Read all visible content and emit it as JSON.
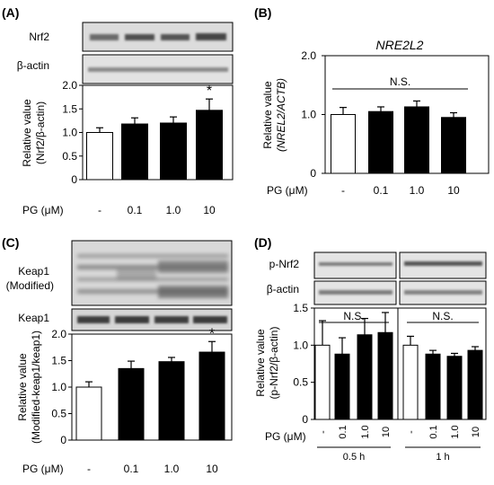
{
  "panels": {
    "A": {
      "letter": "(A)",
      "blot1": "Nrf2",
      "blot2": "β-actin"
    },
    "B": {
      "letter": "(B)",
      "gene_title": "NRE2L2"
    },
    "C": {
      "letter": "(C)",
      "blot1_line1": "Keap1",
      "blot1_line2": "(Modified)",
      "blot2": "Keap1"
    },
    "D": {
      "letter": "(D)",
      "blot1": "p-Nrf2",
      "blot2": "β-actin"
    }
  },
  "colors": {
    "control": "#ffffff",
    "treated": "#000000",
    "blot_bg": "#e4e4e4",
    "band": "#555555"
  },
  "chart_data": [
    {
      "id": "A",
      "type": "bar",
      "categories": [
        "-",
        "0.1",
        "1.0",
        "10"
      ],
      "values": [
        1.0,
        1.18,
        1.2,
        1.47
      ],
      "errors": [
        0.1,
        0.13,
        0.13,
        0.24
      ],
      "significance": [
        "",
        "",
        "",
        "*"
      ],
      "ylim": [
        0,
        2.0
      ],
      "yticks": [
        "0",
        "0.5",
        "1.0",
        "1.5",
        "2.0"
      ],
      "ylabel": [
        "Relative value",
        "(Nrf2/β-actin)"
      ],
      "xlabel": "PG (μM)"
    },
    {
      "id": "B",
      "type": "bar",
      "title": "NRE2L2",
      "categories": [
        "-",
        "0.1",
        "1.0",
        "10"
      ],
      "values": [
        1.0,
        1.05,
        1.13,
        0.95
      ],
      "errors": [
        0.12,
        0.08,
        0.1,
        0.08
      ],
      "annotation": "N.S.",
      "ylim": [
        0,
        2.0
      ],
      "yticks": [
        "0",
        "1.0",
        "2.0"
      ],
      "ylabel": [
        "Relative value",
        "(NREL2/ACTB)"
      ],
      "xlabel": "PG (μM)"
    },
    {
      "id": "C",
      "type": "bar",
      "categories": [
        "-",
        "0.1",
        "1.0",
        "10"
      ],
      "values": [
        1.0,
        1.35,
        1.48,
        1.66
      ],
      "errors": [
        0.1,
        0.14,
        0.08,
        0.2
      ],
      "significance": [
        "",
        "",
        "",
        "*"
      ],
      "ylim": [
        0,
        2.0
      ],
      "yticks": [
        "0",
        "0.5",
        "1.0",
        "1.5",
        "2.0"
      ],
      "ylabel": [
        "Relative value",
        "(Modified-keap1/keap1)"
      ],
      "xlabel": "PG (μM)"
    },
    {
      "id": "D",
      "type": "bar",
      "groups": [
        {
          "name": "0.5 h",
          "categories": [
            "-",
            "0.1",
            "1.0",
            "10"
          ],
          "values": [
            1.0,
            0.88,
            1.14,
            1.17
          ],
          "errors": [
            0.33,
            0.22,
            0.22,
            0.27
          ],
          "annotation": "N.S."
        },
        {
          "name": "1 h",
          "categories": [
            "-",
            "0.1",
            "1.0",
            "10"
          ],
          "values": [
            1.0,
            0.88,
            0.85,
            0.93
          ],
          "errors": [
            0.12,
            0.05,
            0.04,
            0.05
          ],
          "annotation": "N.S."
        }
      ],
      "ylim": [
        0,
        1.5
      ],
      "yticks": [
        "0",
        "0.5",
        "1.0",
        "1.5"
      ],
      "ylabel": [
        "Relative value",
        "(p-Nrf2/β-actin)"
      ],
      "xlabel": "PG (μM)"
    }
  ]
}
